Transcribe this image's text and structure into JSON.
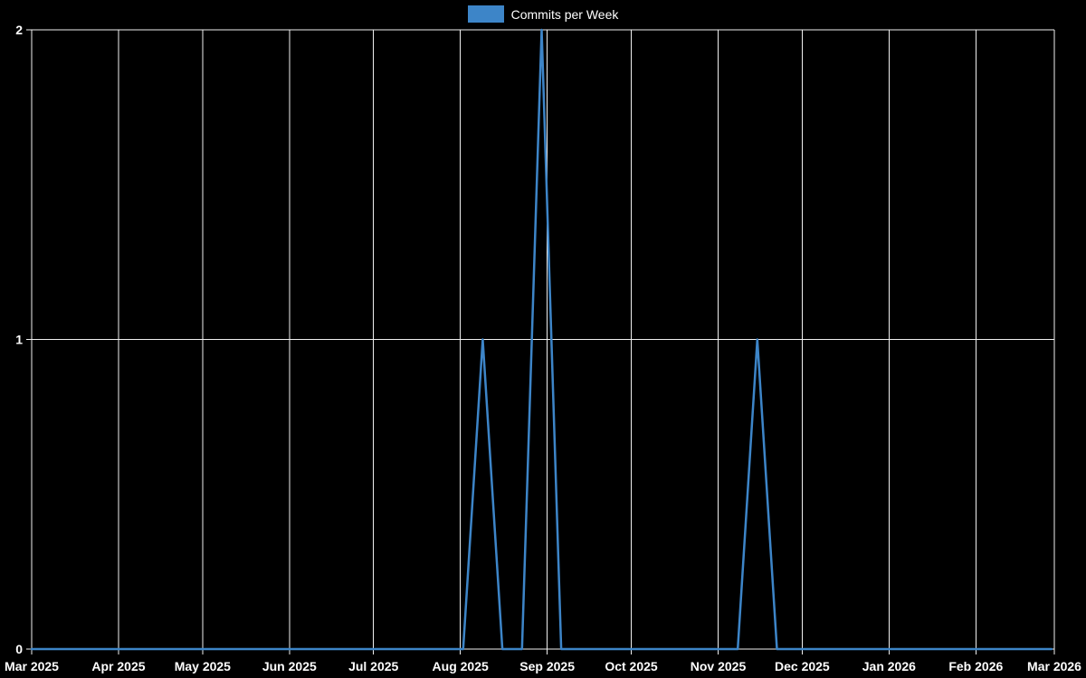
{
  "legend": {
    "label": "Commits per Week"
  },
  "chart_data": {
    "type": "line",
    "title": "Commits per Week",
    "background": "#000000",
    "grid": true,
    "grid_color": "#f0f0f0",
    "text_color": "#ffffff",
    "line_color": "#3d85c8",
    "legend_position": "top-center",
    "ylim": [
      0,
      2
    ],
    "y_ticks": [
      0,
      1,
      2
    ],
    "total_days": 365,
    "days_per_point": 7,
    "x_ticks": [
      {
        "label": "Mar 2025",
        "day": 0
      },
      {
        "label": "Apr 2025",
        "day": 31
      },
      {
        "label": "May 2025",
        "day": 61
      },
      {
        "label": "Jun 2025",
        "day": 92
      },
      {
        "label": "Jul 2025",
        "day": 122
      },
      {
        "label": "Aug 2025",
        "day": 153
      },
      {
        "label": "Sep 2025",
        "day": 184
      },
      {
        "label": "Oct 2025",
        "day": 214
      },
      {
        "label": "Nov 2025",
        "day": 245
      },
      {
        "label": "Dec 2025",
        "day": 275
      },
      {
        "label": "Jan 2026",
        "day": 306
      },
      {
        "label": "Feb 2026",
        "day": 337
      },
      {
        "label": "Mar 2026",
        "day": 365
      }
    ],
    "series": [
      {
        "name": "Commits per Week",
        "values": [
          0,
          0,
          0,
          0,
          0,
          0,
          0,
          0,
          0,
          0,
          0,
          0,
          0,
          0,
          0,
          0,
          0,
          0,
          0,
          0,
          0,
          0,
          0,
          1,
          0,
          0,
          2,
          0,
          0,
          0,
          0,
          0,
          0,
          0,
          0,
          0,
          0,
          1,
          0,
          0,
          0,
          0,
          0,
          0,
          0,
          0,
          0,
          0,
          0,
          0,
          0,
          0,
          0
        ]
      }
    ]
  }
}
